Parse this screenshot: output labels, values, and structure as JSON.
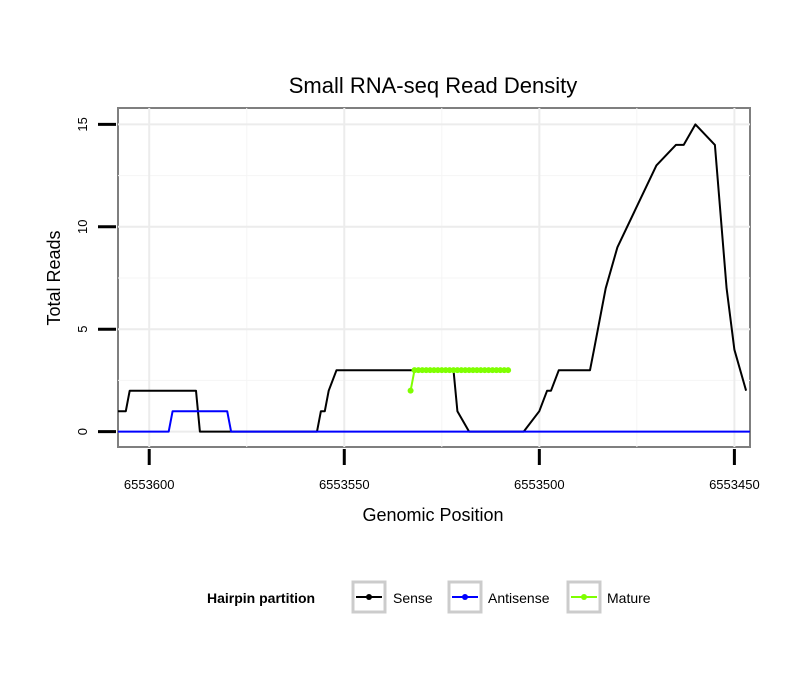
{
  "chart_data": {
    "type": "line",
    "title": "Small RNA-seq Read Density",
    "xlabel": "Genomic Position",
    "ylabel": "Total Reads",
    "xlim": [
      6553608,
      6553446
    ],
    "ylim": [
      -0.75,
      15.8
    ],
    "x_reversed": true,
    "x_ticks": [
      6553600,
      6553550,
      6553500,
      6553450
    ],
    "x_tick_labels": [
      "6553600",
      "6553550",
      "6553500",
      "6553450"
    ],
    "y_ticks": [
      0,
      5,
      10,
      15
    ],
    "y_tick_labels": [
      "0",
      "5",
      "10",
      "15"
    ],
    "legend": {
      "title": "Hairpin partition",
      "position": "bottom",
      "entries": [
        "Sense",
        "Antisense",
        "Mature"
      ]
    },
    "series": [
      {
        "name": "Sense",
        "color": "#000000",
        "x": [
          6553608,
          6553606,
          6553605,
          6553604,
          6553590,
          6553588,
          6553587,
          6553585,
          6553575,
          6553565,
          6553557,
          6553556,
          6553555,
          6553554,
          6553552,
          6553551,
          6553550,
          6553540,
          6553534,
          6553533,
          6553532,
          6553525,
          6553522,
          6553521,
          6553518,
          6553517,
          6553515,
          6553508,
          6553507,
          6553506,
          6553505,
          6553504,
          6553500,
          6553498,
          6553497,
          6553495,
          6553494,
          6553487,
          6553486,
          6553484,
          6553483,
          6553480,
          6553470,
          6553465,
          6553463,
          6553460,
          6553455,
          6553452,
          6553450,
          6553447
        ],
        "y": [
          1,
          1,
          2,
          2,
          2,
          2,
          0,
          0,
          0,
          0,
          0,
          1,
          1,
          2,
          3,
          3,
          3,
          3,
          3,
          3,
          3,
          3,
          3,
          1,
          0,
          0,
          0,
          0,
          0,
          0,
          0,
          0,
          1,
          2,
          2,
          3,
          3,
          3,
          4,
          6,
          7,
          9,
          13,
          14,
          14,
          15,
          14,
          7,
          4,
          2
        ]
      },
      {
        "name": "Antisense",
        "color": "#0000ff",
        "x": [
          6553608,
          6553595,
          6553594,
          6553580,
          6553579,
          6553446
        ],
        "y": [
          0,
          0,
          1,
          1,
          0,
          0
        ]
      },
      {
        "name": "Mature",
        "color": "#7fff00",
        "x": [
          6553533,
          6553532,
          6553531,
          6553530,
          6553529,
          6553528,
          6553527,
          6553526,
          6553525,
          6553524,
          6553523,
          6553522,
          6553521,
          6553520,
          6553519,
          6553518,
          6553517,
          6553516,
          6553515,
          6553514,
          6553513,
          6553512,
          6553511,
          6553510,
          6553509,
          6553508
        ],
        "y": [
          2,
          3,
          3,
          3,
          3,
          3,
          3,
          3,
          3,
          3,
          3,
          3,
          3,
          3,
          3,
          3,
          3,
          3,
          3,
          3,
          3,
          3,
          3,
          3,
          3,
          3
        ]
      }
    ]
  }
}
